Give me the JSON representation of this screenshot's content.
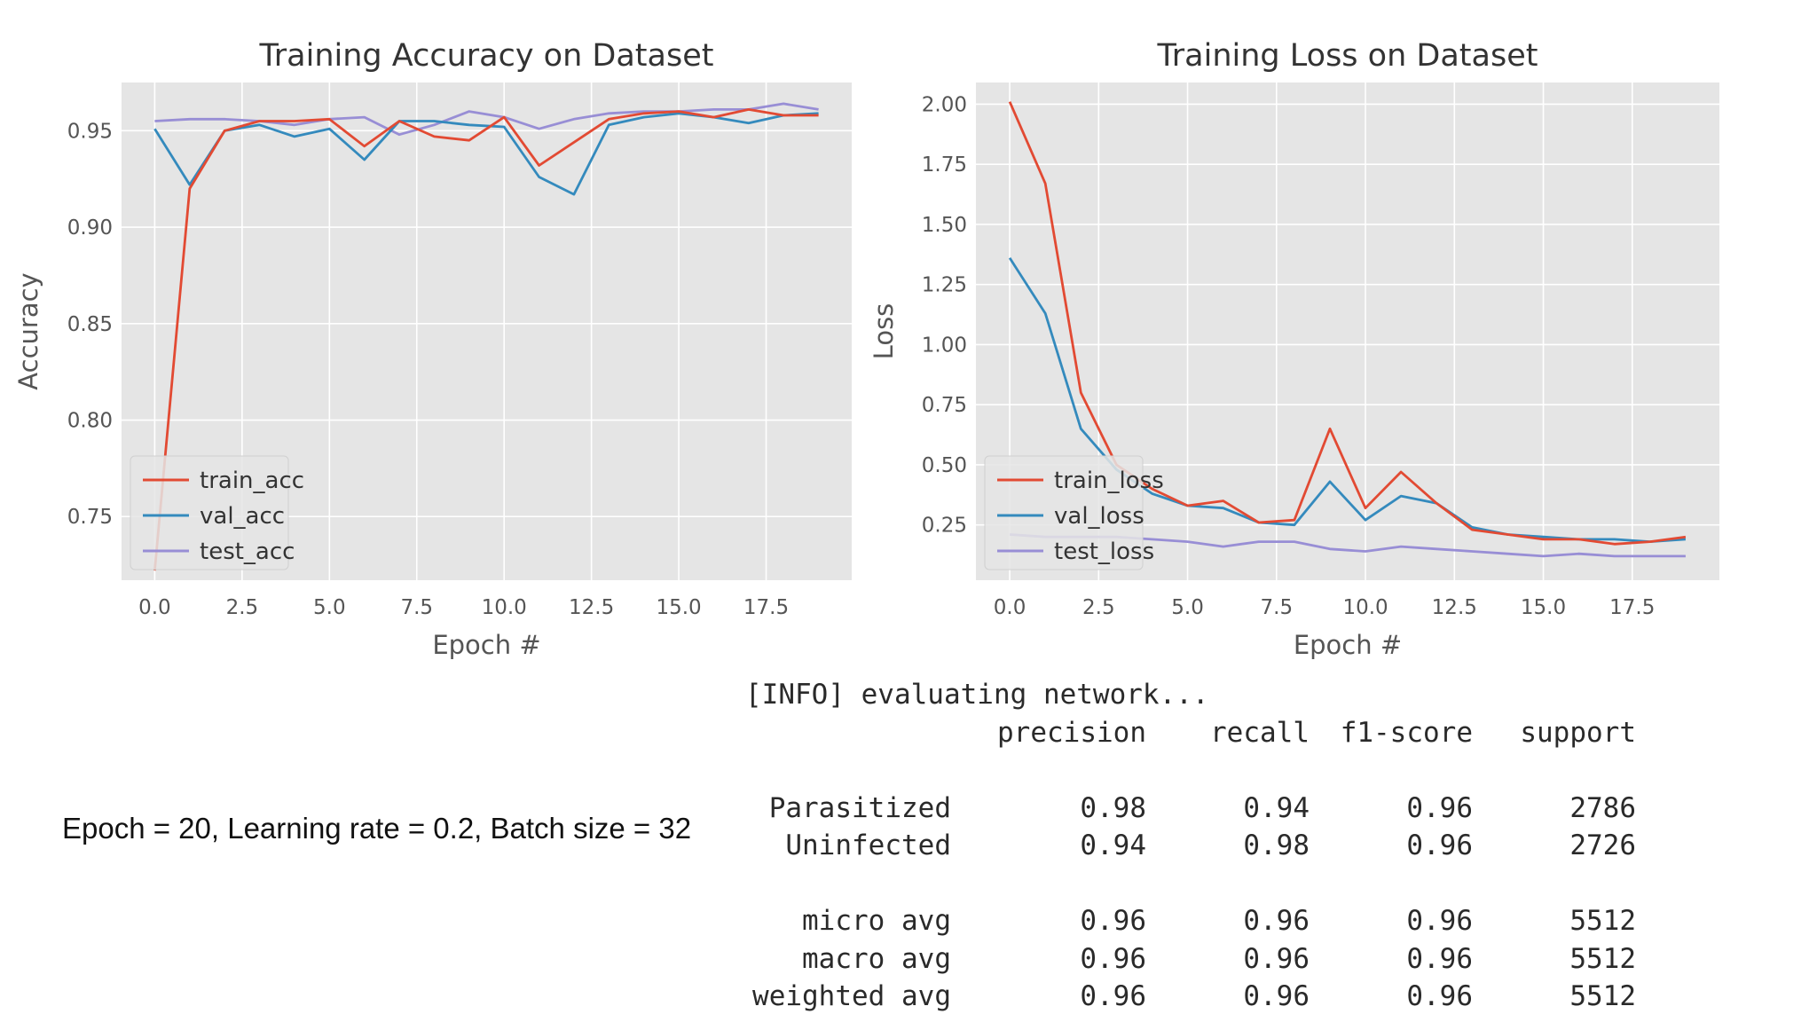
{
  "chart_data": [
    {
      "type": "line",
      "title": "Training Accuracy on Dataset",
      "xlabel": "Epoch #",
      "ylabel": "Accuracy",
      "xlim": [
        -0.95,
        19.95
      ],
      "ylim": [
        0.717,
        0.975
      ],
      "xticks": [
        0.0,
        2.5,
        5.0,
        7.5,
        10.0,
        12.5,
        15.0,
        17.5
      ],
      "xtick_labels": [
        "0.0",
        "2.5",
        "5.0",
        "7.5",
        "10.0",
        "12.5",
        "15.0",
        "17.5"
      ],
      "yticks": [
        0.75,
        0.8,
        0.85,
        0.9,
        0.95
      ],
      "ytick_labels": [
        "0.75",
        "0.80",
        "0.85",
        "0.90",
        "0.95"
      ],
      "grid": true,
      "legend_position": "lower-left",
      "x": [
        0,
        1,
        2,
        3,
        4,
        5,
        6,
        7,
        8,
        9,
        10,
        11,
        12,
        13,
        14,
        15,
        16,
        17,
        18,
        19
      ],
      "series": [
        {
          "name": "train_acc",
          "color": "#e24a33",
          "values": [
            0.722,
            0.92,
            0.95,
            0.955,
            0.955,
            0.956,
            0.942,
            0.955,
            0.947,
            0.945,
            0.957,
            0.932,
            0.944,
            0.956,
            0.959,
            0.96,
            0.957,
            0.961,
            0.958,
            0.958
          ]
        },
        {
          "name": "val_acc",
          "color": "#348abd",
          "values": [
            0.951,
            0.922,
            0.95,
            0.953,
            0.947,
            0.951,
            0.935,
            0.955,
            0.955,
            0.953,
            0.952,
            0.926,
            0.917,
            0.953,
            0.957,
            0.959,
            0.957,
            0.954,
            0.958,
            0.959
          ]
        },
        {
          "name": "test_acc",
          "color": "#988ed5",
          "values": [
            0.955,
            0.956,
            0.956,
            0.955,
            0.953,
            0.956,
            0.957,
            0.948,
            0.953,
            0.96,
            0.957,
            0.951,
            0.956,
            0.959,
            0.96,
            0.96,
            0.961,
            0.961,
            0.964,
            0.961
          ]
        }
      ]
    },
    {
      "type": "line",
      "title": "Training Loss on Dataset",
      "xlabel": "Epoch #",
      "ylabel": "Loss",
      "xlim": [
        -0.95,
        19.95
      ],
      "ylim": [
        0.02,
        2.09
      ],
      "xticks": [
        0.0,
        2.5,
        5.0,
        7.5,
        10.0,
        12.5,
        15.0,
        17.5
      ],
      "xtick_labels": [
        "0.0",
        "2.5",
        "5.0",
        "7.5",
        "10.0",
        "12.5",
        "15.0",
        "17.5"
      ],
      "yticks": [
        0.25,
        0.5,
        0.75,
        1.0,
        1.25,
        1.5,
        1.75,
        2.0
      ],
      "ytick_labels": [
        "0.25",
        "0.50",
        "0.75",
        "1.00",
        "1.25",
        "1.50",
        "1.75",
        "2.00"
      ],
      "grid": true,
      "legend_position": "lower-left",
      "x": [
        0,
        1,
        2,
        3,
        4,
        5,
        6,
        7,
        8,
        9,
        10,
        11,
        12,
        13,
        14,
        15,
        16,
        17,
        18,
        19
      ],
      "series": [
        {
          "name": "train_loss",
          "color": "#e24a33",
          "values": [
            2.01,
            1.67,
            0.8,
            0.5,
            0.4,
            0.33,
            0.35,
            0.26,
            0.27,
            0.65,
            0.32,
            0.47,
            0.34,
            0.23,
            0.21,
            0.19,
            0.19,
            0.17,
            0.18,
            0.2
          ]
        },
        {
          "name": "val_loss",
          "color": "#348abd",
          "values": [
            1.36,
            1.13,
            0.65,
            0.48,
            0.38,
            0.33,
            0.32,
            0.26,
            0.25,
            0.43,
            0.27,
            0.37,
            0.34,
            0.24,
            0.21,
            0.2,
            0.19,
            0.19,
            0.18,
            0.19
          ]
        },
        {
          "name": "test_loss",
          "color": "#988ed5",
          "values": [
            0.21,
            0.2,
            0.2,
            0.2,
            0.19,
            0.18,
            0.16,
            0.18,
            0.18,
            0.15,
            0.14,
            0.16,
            0.15,
            0.14,
            0.13,
            0.12,
            0.13,
            0.12,
            0.12,
            0.12
          ]
        }
      ]
    }
  ],
  "caption": "Epoch = 20, Learning rate = 0.2, Batch size = 32",
  "report": {
    "info_line": "[INFO] evaluating network...",
    "header": [
      "precision",
      "recall",
      "f1-score",
      "support"
    ],
    "class_rows": [
      {
        "name": "Parasitized",
        "precision": "0.98",
        "recall": "0.94",
        "f1": "0.96",
        "support": "2786"
      },
      {
        "name": "Uninfected",
        "precision": "0.94",
        "recall": "0.98",
        "f1": "0.96",
        "support": "2726"
      }
    ],
    "avg_rows": [
      {
        "name": "micro avg",
        "precision": "0.96",
        "recall": "0.96",
        "f1": "0.96",
        "support": "5512"
      },
      {
        "name": "macro avg",
        "precision": "0.96",
        "recall": "0.96",
        "f1": "0.96",
        "support": "5512"
      },
      {
        "name": "weighted avg",
        "precision": "0.96",
        "recall": "0.96",
        "f1": "0.96",
        "support": "5512"
      }
    ]
  }
}
